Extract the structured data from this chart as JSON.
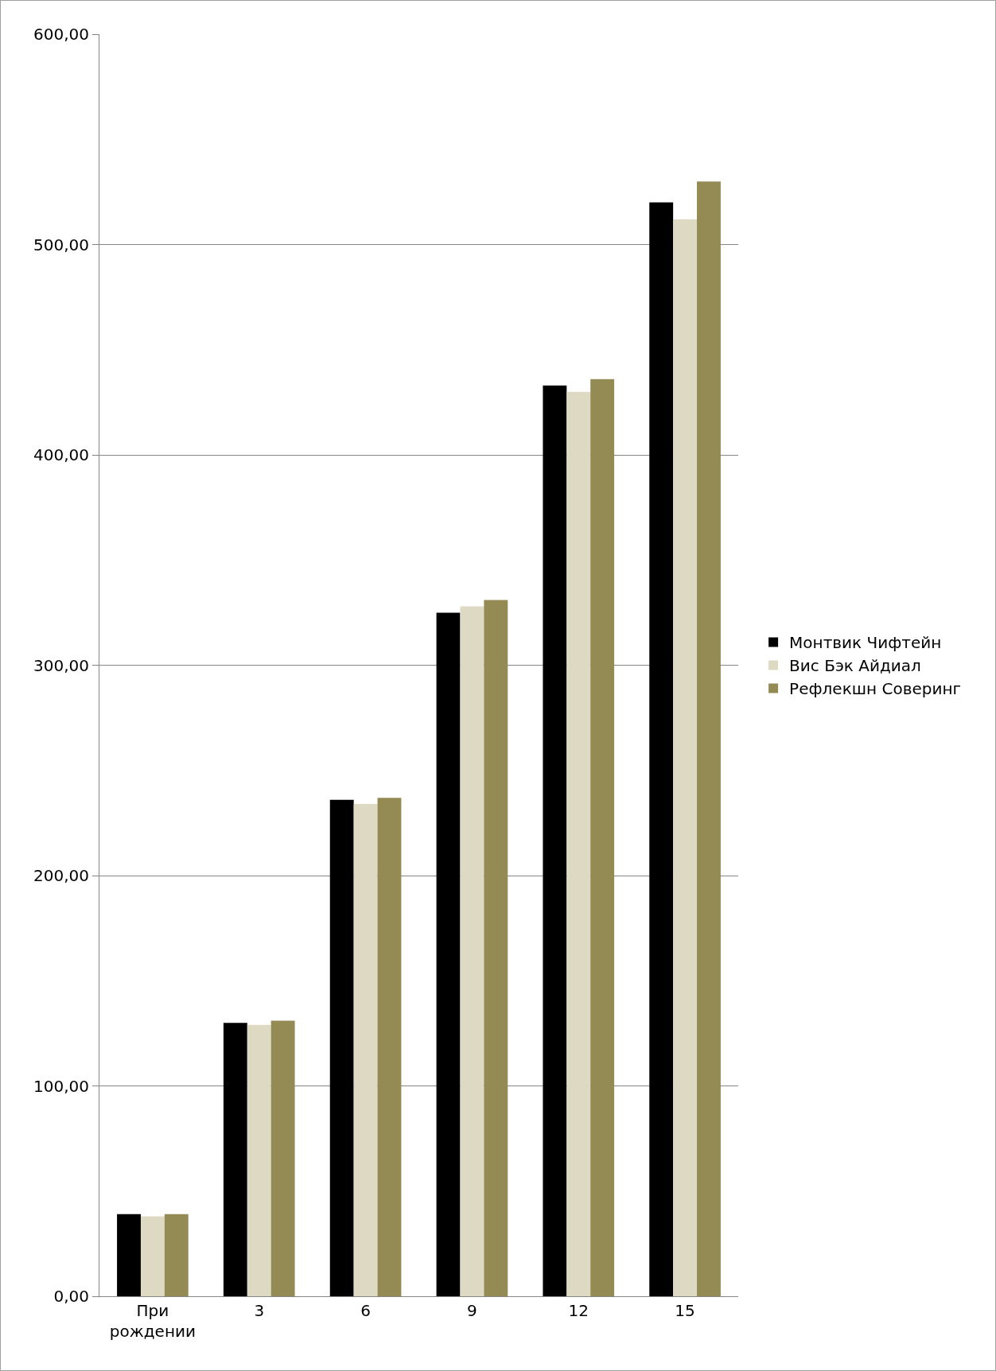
{
  "chart_data": {
    "type": "bar",
    "categories": [
      "При рождении",
      "3",
      "6",
      "9",
      "12",
      "15"
    ],
    "series": [
      {
        "name": "Монтвик Чифтейн",
        "color": "#000000",
        "values": [
          39,
          130,
          236,
          325,
          433,
          520
        ]
      },
      {
        "name": "Вис Бэк Айдиал",
        "color": "#ddd9c3",
        "values": [
          38,
          129,
          234,
          328,
          430,
          512
        ]
      },
      {
        "name": "Рефлекшн Соверинг",
        "color": "#948a54",
        "values": [
          39,
          131,
          237,
          331,
          436,
          530
        ]
      }
    ],
    "ylim": [
      0,
      600
    ],
    "yticks": [
      {
        "value": 0,
        "label": "0,00"
      },
      {
        "value": 100,
        "label": "100,00"
      },
      {
        "value": 200,
        "label": "200,00"
      },
      {
        "value": 300,
        "label": "300,00"
      },
      {
        "value": 400,
        "label": "400,00"
      },
      {
        "value": 500,
        "label": "500,00"
      },
      {
        "value": 600,
        "label": "600,00"
      }
    ],
    "grid": "y",
    "legend": "right"
  }
}
